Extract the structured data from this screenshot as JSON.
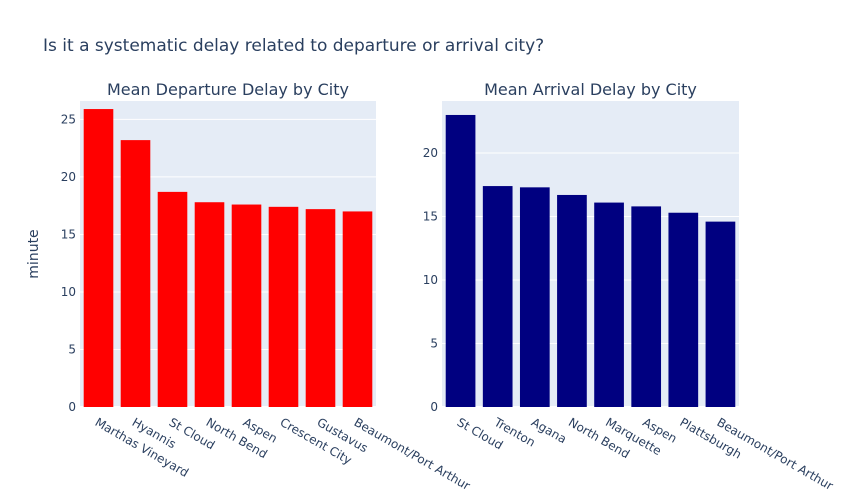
{
  "title": "Is it a systematic delay related to departure or arrival city?",
  "chart_data": [
    {
      "type": "bar",
      "title": "Mean Departure Delay by City",
      "ylabel": "minute",
      "xlabel": "",
      "color": "#ff0000",
      "ylim": [
        0,
        26.6
      ],
      "yticks": [
        0,
        5,
        10,
        15,
        20,
        25
      ],
      "categories": [
        "Marthas Vineyard",
        "Hyannis",
        "St Cloud",
        "North Bend",
        "Aspen",
        "Crescent City",
        "Gustavus",
        "Beaumont/Port Arthur"
      ],
      "values": [
        25.9,
        23.2,
        18.7,
        17.8,
        17.6,
        17.4,
        17.2,
        17.0
      ],
      "grid": true,
      "legend": "none"
    },
    {
      "type": "bar",
      "title": "Mean Arrival Delay by City",
      "ylabel": "",
      "xlabel": "",
      "color": "#000080",
      "ylim": [
        0,
        24.1
      ],
      "yticks": [
        0,
        5,
        10,
        15,
        20
      ],
      "categories": [
        "St Cloud",
        "Trenton",
        "Agana",
        "North Bend",
        "Marquette",
        "Aspen",
        "Plattsburgh",
        "Beaumont/Port Arthur"
      ],
      "values": [
        23.0,
        17.4,
        17.3,
        16.7,
        16.1,
        15.8,
        15.3,
        14.6
      ],
      "grid": true,
      "legend": "none"
    }
  ]
}
